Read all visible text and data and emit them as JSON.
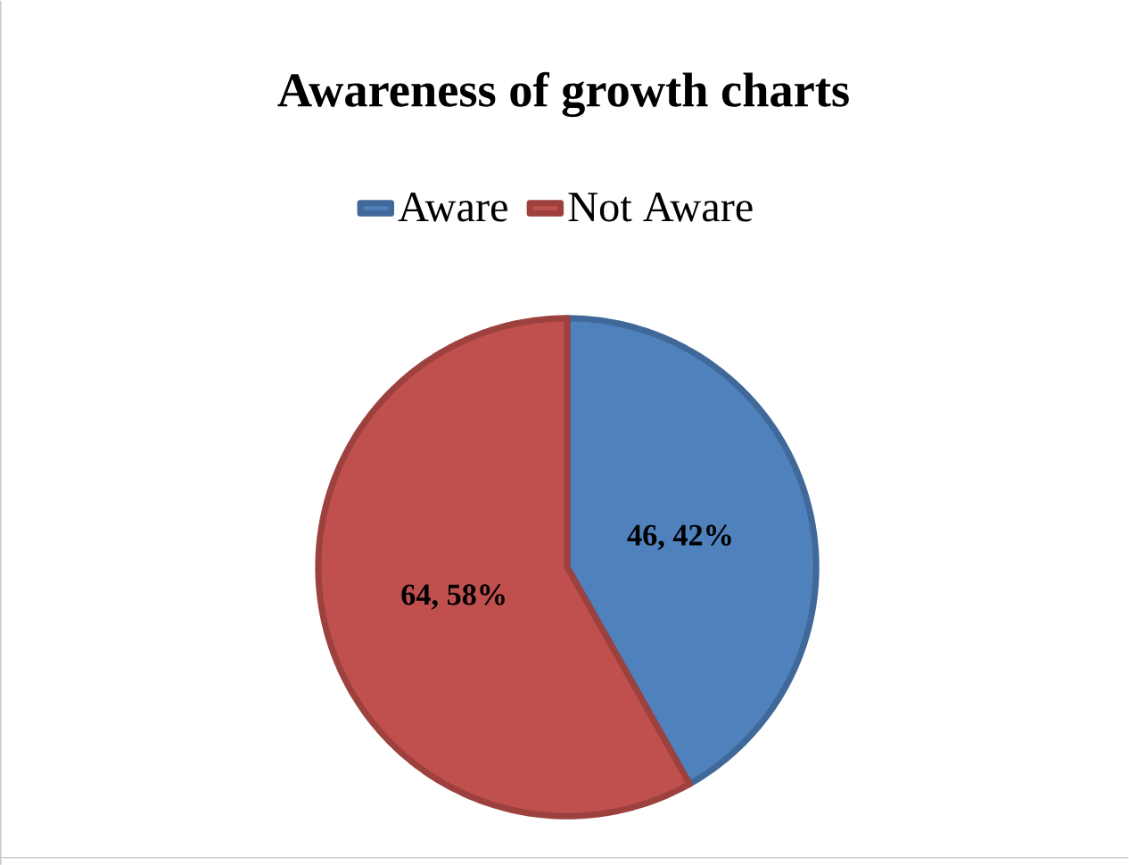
{
  "chart_data": {
    "type": "pie",
    "title": "Awareness of growth charts",
    "categories": [
      "Aware",
      "Not Aware"
    ],
    "values": [
      46,
      64
    ],
    "colors": [
      "#4f81bd",
      "#c0504d"
    ],
    "value_labels": [
      "46, 42%",
      "64, 58%"
    ],
    "legend": "top"
  }
}
